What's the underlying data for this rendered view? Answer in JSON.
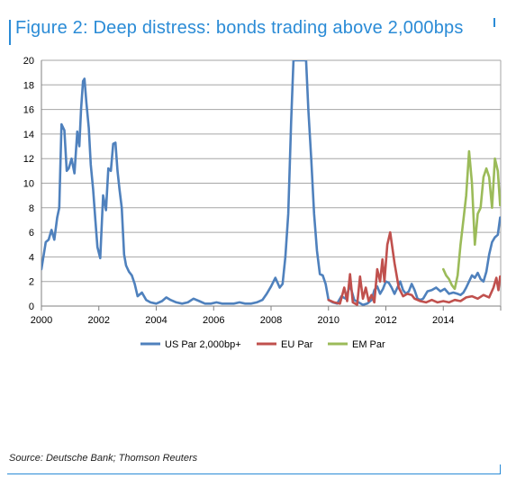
{
  "title": "Figure 2: Deep distress: bonds trading above 2,000bps",
  "source": "Source: Deutsche Bank; Thomson Reuters",
  "chart_data": {
    "type": "line",
    "title": "Figure 2: Deep distress: bonds trading above 2,000bps",
    "xlabel": "",
    "ylabel": "",
    "xlim": [
      2000,
      2016
    ],
    "ylim": [
      0,
      20
    ],
    "x_ticks": [
      "2000",
      "2002",
      "2004",
      "2006",
      "2008",
      "2010",
      "2012",
      "2014"
    ],
    "y_ticks": [
      "0",
      "2",
      "4",
      "6",
      "8",
      "10",
      "12",
      "14",
      "16",
      "18",
      "20"
    ],
    "grid": true,
    "legend_position": "bottom",
    "series": [
      {
        "name": "US Par 2,000bp+",
        "color": "#4f81bd",
        "x": [
          2000.0,
          2000.15,
          2000.25,
          2000.35,
          2000.45,
          2000.55,
          2000.62,
          2000.7,
          2000.8,
          2000.88,
          2000.95,
          2001.05,
          2001.15,
          2001.25,
          2001.32,
          2001.38,
          2001.45,
          2001.5,
          2001.57,
          2001.65,
          2001.72,
          2001.8,
          2001.88,
          2001.95,
          2002.05,
          2002.15,
          2002.25,
          2002.33,
          2002.42,
          2002.5,
          2002.58,
          2002.65,
          2002.72,
          2002.8,
          2002.88,
          2002.95,
          2003.05,
          2003.15,
          2003.25,
          2003.35,
          2003.5,
          2003.65,
          2003.8,
          2004.0,
          2004.2,
          2004.35,
          2004.5,
          2004.7,
          2004.9,
          2005.1,
          2005.3,
          2005.5,
          2005.7,
          2005.9,
          2006.1,
          2006.3,
          2006.5,
          2006.7,
          2006.9,
          2007.1,
          2007.3,
          2007.5,
          2007.7,
          2007.85,
          2008.0,
          2008.15,
          2008.3,
          2008.4,
          2008.5,
          2008.6,
          2008.7,
          2008.78,
          2008.85,
          2008.92,
          2009.0,
          2009.08,
          2009.15,
          2009.22,
          2009.3,
          2009.4,
          2009.5,
          2009.6,
          2009.7,
          2009.8,
          2009.9,
          2010.0,
          2010.15,
          2010.3,
          2010.45,
          2010.6,
          2010.75,
          2010.9,
          2011.05,
          2011.2,
          2011.35,
          2011.5,
          2011.6,
          2011.7,
          2011.8,
          2011.9,
          2012.0,
          2012.1,
          2012.2,
          2012.3,
          2012.4,
          2012.5,
          2012.6,
          2012.7,
          2012.8,
          2012.9,
          2013.0,
          2013.1,
          2013.2,
          2013.3,
          2013.45,
          2013.6,
          2013.75,
          2013.9,
          2014.05,
          2014.2,
          2014.35,
          2014.5,
          2014.6,
          2014.7,
          2014.8,
          2014.9,
          2015.0,
          2015.1,
          2015.2,
          2015.3,
          2015.4,
          2015.5,
          2015.6,
          2015.7,
          2015.8,
          2015.9,
          2015.98
        ],
        "values": [
          3.0,
          5.2,
          5.4,
          6.2,
          5.4,
          7.2,
          8.0,
          14.8,
          14.3,
          11.0,
          11.2,
          12.0,
          10.8,
          14.2,
          13.0,
          16.0,
          18.3,
          18.5,
          16.5,
          14.5,
          11.5,
          9.5,
          7.0,
          4.8,
          3.9,
          9.0,
          7.8,
          11.2,
          11.0,
          13.2,
          13.3,
          11.0,
          9.5,
          8.0,
          4.2,
          3.3,
          2.8,
          2.5,
          1.8,
          0.8,
          1.1,
          0.5,
          0.3,
          0.2,
          0.4,
          0.7,
          0.5,
          0.3,
          0.2,
          0.3,
          0.6,
          0.4,
          0.2,
          0.2,
          0.3,
          0.2,
          0.2,
          0.2,
          0.3,
          0.2,
          0.2,
          0.3,
          0.5,
          1.0,
          1.6,
          2.3,
          1.5,
          1.8,
          4.0,
          7.5,
          15.0,
          20.0,
          20.0,
          20.0,
          20.0,
          20.0,
          20.0,
          20.0,
          16.0,
          12.0,
          7.5,
          4.5,
          2.6,
          2.5,
          1.8,
          0.5,
          0.3,
          0.2,
          0.8,
          0.6,
          1.7,
          0.5,
          0.3,
          0.1,
          0.2,
          0.5,
          1.3,
          1.6,
          1.0,
          1.4,
          2.0,
          1.9,
          1.5,
          1.0,
          1.5,
          2.0,
          1.3,
          1.0,
          1.2,
          1.8,
          1.3,
          0.6,
          0.5,
          0.6,
          1.2,
          1.3,
          1.5,
          1.2,
          1.4,
          1.0,
          1.1,
          1.0,
          0.9,
          1.1,
          1.5,
          2.0,
          2.5,
          2.3,
          2.7,
          2.2,
          2.0,
          2.8,
          4.2,
          5.2,
          5.6,
          5.8,
          7.2
        ]
      },
      {
        "name": "EU Par",
        "color": "#c0504d",
        "x": [
          2010.0,
          2010.2,
          2010.4,
          2010.55,
          2010.65,
          2010.75,
          2010.85,
          2011.0,
          2011.1,
          2011.2,
          2011.3,
          2011.4,
          2011.5,
          2011.6,
          2011.7,
          2011.8,
          2011.88,
          2011.95,
          2012.05,
          2012.15,
          2012.3,
          2012.45,
          2012.6,
          2012.75,
          2012.9,
          2013.0,
          2013.2,
          2013.4,
          2013.6,
          2013.8,
          2014.0,
          2014.2,
          2014.4,
          2014.6,
          2014.8,
          2015.0,
          2015.2,
          2015.4,
          2015.6,
          2015.75,
          2015.85,
          2015.92,
          2015.98
        ],
        "values": [
          0.5,
          0.3,
          0.2,
          1.5,
          0.4,
          2.6,
          0.3,
          0.1,
          2.4,
          0.6,
          1.5,
          0.4,
          0.9,
          0.3,
          3.0,
          2.0,
          3.8,
          2.0,
          5.0,
          6.0,
          3.5,
          1.5,
          0.8,
          1.0,
          0.9,
          0.6,
          0.4,
          0.3,
          0.5,
          0.3,
          0.4,
          0.3,
          0.5,
          0.4,
          0.7,
          0.8,
          0.6,
          0.9,
          0.7,
          1.5,
          2.3,
          1.3,
          2.4
        ]
      },
      {
        "name": "EM Par",
        "color": "#9bbb59",
        "x": [
          2014.0,
          2014.1,
          2014.2,
          2014.3,
          2014.4,
          2014.5,
          2014.6,
          2014.7,
          2014.8,
          2014.9,
          2015.0,
          2015.1,
          2015.2,
          2015.3,
          2015.4,
          2015.5,
          2015.6,
          2015.7,
          2015.8,
          2015.9,
          2015.98
        ],
        "values": [
          3.0,
          2.5,
          2.2,
          1.7,
          1.4,
          2.5,
          5.0,
          7.0,
          9.0,
          12.6,
          10.0,
          5.0,
          7.5,
          8.0,
          10.5,
          11.2,
          10.5,
          8.0,
          12.0,
          11.0,
          8.2
        ]
      }
    ]
  }
}
